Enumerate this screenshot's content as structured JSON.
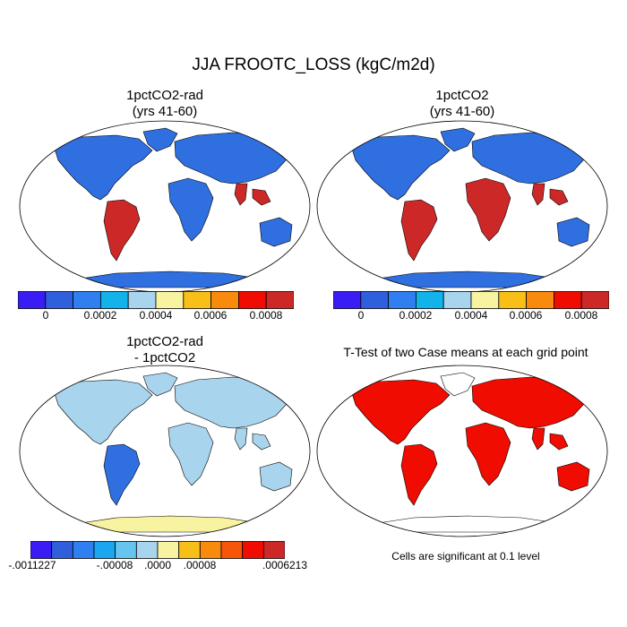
{
  "title": "JJA FROOTC_LOSS (kgC/m2d)",
  "panels": [
    {
      "title_line1": "1pctCO2-rad",
      "title_line2": "(yrs 41-60)"
    },
    {
      "title_line1": "1pctCO2",
      "title_line2": "(yrs 41-60)"
    },
    {
      "title_line1": "1pctCO2-rad",
      "title_line2": "- 1pctCO2"
    },
    {
      "title_line1": "T-Test of two Case means at each grid point",
      "title_line2": ""
    }
  ],
  "colorbar_top": {
    "colors": [
      "#3a1cf5",
      "#2f5fdc",
      "#2f7ff0",
      "#11b3ea",
      "#a8d4ee",
      "#f8f3a0",
      "#f7bf17",
      "#f88a0e",
      "#f00c00",
      "#cd2828"
    ],
    "tick_labels": [
      "0",
      "0.0002",
      "0.0004",
      "0.0006",
      "0.0008"
    ]
  },
  "colorbar_bottom": {
    "colors": [
      "#3a1cf5",
      "#2f5fdc",
      "#2f7ff0",
      "#1aa7f0",
      "#66c5ee",
      "#a8d4ee",
      "#f8f3a0",
      "#f7bf17",
      "#f88a0e",
      "#f7560a",
      "#f00c00",
      "#cd2828"
    ],
    "tick_labels": [
      "-.0011227",
      "-.00008",
      ".0000",
      ".00008",
      ".0006213"
    ]
  },
  "significance_note": "Cells are significant at 0.1 level",
  "map_colors": {
    "ocean": "#ffffff",
    "land_low": "#2f6fe0",
    "land_mid": "#a8d4ee",
    "tropic_high": "#cd2828",
    "antarctica_diff": "#f8f3a0",
    "significant": "#f00c00"
  }
}
